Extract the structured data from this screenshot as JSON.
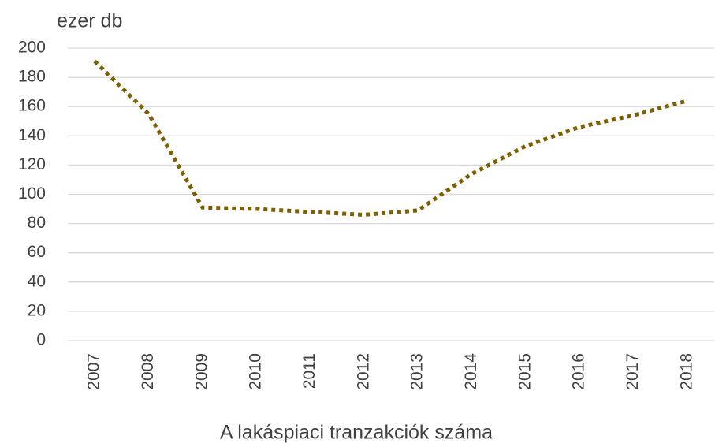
{
  "chart_data": {
    "type": "line",
    "title": "A lakáspiaci tranzakciók száma",
    "ylabel": "ezer db",
    "categories": [
      "2007",
      "2008",
      "2009",
      "2010",
      "2011",
      "2012",
      "2013",
      "2014",
      "2015",
      "2016",
      "2017",
      "2018"
    ],
    "values": [
      191,
      155,
      91,
      90,
      88,
      86,
      89,
      114,
      133,
      146,
      154,
      164
    ],
    "color": "#7f6000",
    "ylim": [
      0,
      200
    ],
    "yticks": [
      0,
      20,
      40,
      60,
      80,
      100,
      120,
      140,
      160,
      180,
      200
    ],
    "grid": true
  }
}
